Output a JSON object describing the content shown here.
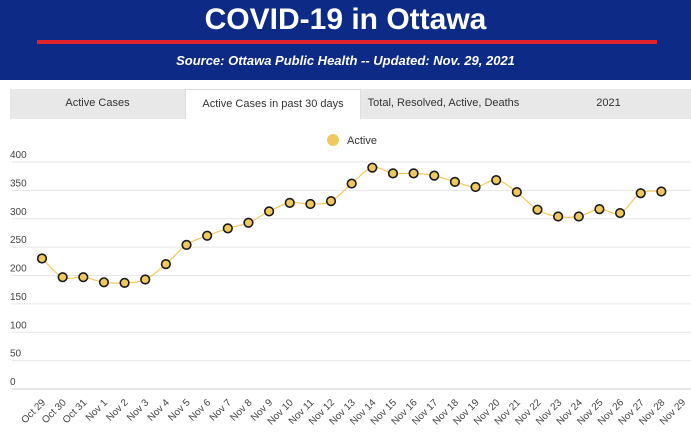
{
  "header": {
    "title": "COVID-19 in Ottawa",
    "subtitle": "Source:  Ottawa Public Health -- Updated:  Nov. 29, 2021"
  },
  "tabs": [
    {
      "label": "Active Cases",
      "active": false
    },
    {
      "label": "Active Cases in past 30 days",
      "active": true
    },
    {
      "label": "Total, Resolved, Active, Deaths",
      "active": false
    },
    {
      "label": "2021",
      "active": false
    }
  ],
  "colors": {
    "header_bg": "#0d2b86",
    "accent_line": "#e0232b",
    "series": "#f0c95e",
    "marker_stroke": "#1a1a1a"
  },
  "chart_data": {
    "type": "line",
    "legend_position": "top-center",
    "grid": true,
    "ylim": [
      0,
      400
    ],
    "y_ticks": [
      "0",
      "50",
      "100",
      "150",
      "200",
      "250",
      "300",
      "350",
      "400"
    ],
    "categories": [
      "Oct 29",
      "Oct 30",
      "Oct 31",
      "Nov 1",
      "Nov 2",
      "Nov 3",
      "Nov 4",
      "Nov 5",
      "Nov 6",
      "Nov 7",
      "Nov 8",
      "Nov 9",
      "Nov 10",
      "Nov 11",
      "Nov 12",
      "Nov 13",
      "Nov 14",
      "Nov 15",
      "Nov 16",
      "Nov 17",
      "Nov 18",
      "Nov 19",
      "Nov 20",
      "Nov 21",
      "Nov 22",
      "Nov 23",
      "Nov 24",
      "Nov 25",
      "Nov 26",
      "Nov 27",
      "Nov 28",
      "Nov 29"
    ],
    "series": [
      {
        "name": "Active",
        "values": [
          230,
          197,
          197,
          188,
          187,
          193,
          220,
          254,
          270,
          283,
          293,
          313,
          328,
          326,
          331,
          362,
          390,
          380,
          380,
          376,
          365,
          356,
          368,
          347,
          316,
          304,
          304,
          317,
          310,
          345,
          348,
          null
        ]
      }
    ]
  }
}
